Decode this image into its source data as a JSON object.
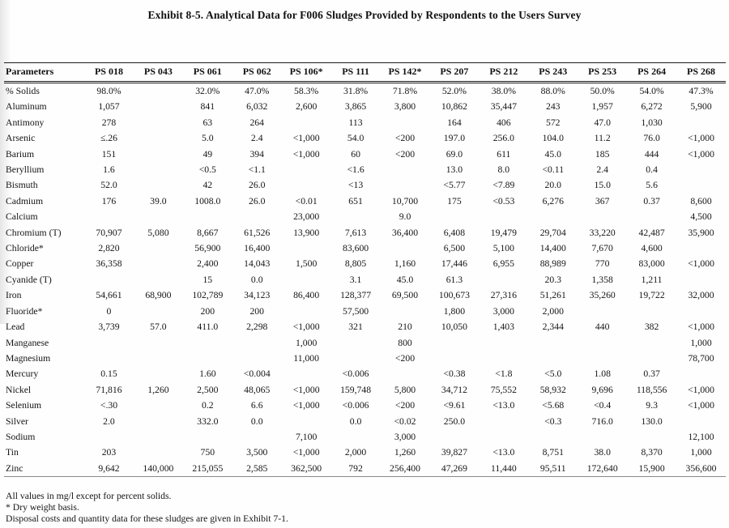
{
  "title": "Exhibit 8-5. Analytical Data for F006 Sludges Provided by Respondents to the Users Survey",
  "table": {
    "param_header": "Parameters",
    "columns": [
      "PS 018",
      "PS 043",
      "PS 061",
      "PS 062",
      "PS 106*",
      "PS 111",
      "PS 142*",
      "PS 207",
      "PS 212",
      "PS 243",
      "PS 253",
      "PS 264",
      "PS 268"
    ],
    "rows": [
      {
        "parameter": "% Solids",
        "values": [
          "98.0%",
          "",
          "32.0%",
          "47.0%",
          "58.3%",
          "31.8%",
          "71.8%",
          "52.0%",
          "38.0%",
          "88.0%",
          "50.0%",
          "54.0%",
          "47.3%"
        ]
      },
      {
        "parameter": "Aluminum",
        "values": [
          "1,057",
          "",
          "841",
          "6,032",
          "2,600",
          "3,865",
          "3,800",
          "10,862",
          "35,447",
          "243",
          "1,957",
          "6,272",
          "5,900"
        ]
      },
      {
        "parameter": "Antimony",
        "values": [
          "278",
          "",
          "63",
          "264",
          "",
          "113",
          "",
          "164",
          "406",
          "572",
          "47.0",
          "1,030",
          ""
        ]
      },
      {
        "parameter": "Arsenic",
        "values": [
          "≤.26",
          "",
          "5.0",
          "2.4",
          "<1,000",
          "54.0",
          "<200",
          "197.0",
          "256.0",
          "104.0",
          "11.2",
          "76.0",
          "<1,000"
        ]
      },
      {
        "parameter": "Barium",
        "values": [
          "151",
          "",
          "49",
          "394",
          "<1,000",
          "60",
          "<200",
          "69.0",
          "611",
          "45.0",
          "185",
          "444",
          "<1,000"
        ]
      },
      {
        "parameter": "Beryllium",
        "values": [
          "1.6",
          "",
          "<0.5",
          "<1.1",
          "",
          "<1.6",
          "",
          "13.0",
          "8.0",
          "<0.11",
          "2.4",
          "0.4",
          ""
        ]
      },
      {
        "parameter": "Bismuth",
        "values": [
          "52.0",
          "",
          "42",
          "26.0",
          "",
          "<13",
          "",
          "<5.77",
          "<7.89",
          "20.0",
          "15.0",
          "5.6",
          ""
        ]
      },
      {
        "parameter": "Cadmium",
        "values": [
          "176",
          "39.0",
          "1008.0",
          "26.0",
          "<0.01",
          "651",
          "10,700",
          "175",
          "<0.53",
          "6,276",
          "367",
          "0.37",
          "8,600"
        ]
      },
      {
        "parameter": "Calcium",
        "values": [
          "",
          "",
          "",
          "",
          "23,000",
          "",
          "9.0",
          "",
          "",
          "",
          "",
          "",
          "4,500"
        ]
      },
      {
        "parameter": "Chromium (T)",
        "values": [
          "70,907",
          "5,080",
          "8,667",
          "61,526",
          "13,900",
          "7,613",
          "36,400",
          "6,408",
          "19,479",
          "29,704",
          "33,220",
          "42,487",
          "35,900"
        ]
      },
      {
        "parameter": "Chloride*",
        "values": [
          "2,820",
          "",
          "56,900",
          "16,400",
          "",
          "83,600",
          "",
          "6,500",
          "5,100",
          "14,400",
          "7,670",
          "4,600",
          ""
        ]
      },
      {
        "parameter": "Copper",
        "values": [
          "36,358",
          "",
          "2,400",
          "14,043",
          "1,500",
          "8,805",
          "1,160",
          "17,446",
          "6,955",
          "88,989",
          "770",
          "83,000",
          "<1,000"
        ]
      },
      {
        "parameter": "Cyanide (T)",
        "values": [
          "",
          "",
          "15",
          "0.0",
          "",
          "3.1",
          "45.0",
          "61.3",
          "",
          "20.3",
          "1,358",
          "1,211",
          ""
        ]
      },
      {
        "parameter": "Iron",
        "values": [
          "54,661",
          "68,900",
          "102,789",
          "34,123",
          "86,400",
          "128,377",
          "69,500",
          "100,673",
          "27,316",
          "51,261",
          "35,260",
          "19,722",
          "32,000"
        ]
      },
      {
        "parameter": "Fluoride*",
        "values": [
          "0",
          "",
          "200",
          "200",
          "",
          "57,500",
          "",
          "1,800",
          "3,000",
          "2,000",
          "",
          "",
          ""
        ]
      },
      {
        "parameter": "Lead",
        "values": [
          "3,739",
          "57.0",
          "411.0",
          "2,298",
          "<1,000",
          "321",
          "210",
          "10,050",
          "1,403",
          "2,344",
          "440",
          "382",
          "<1,000"
        ]
      },
      {
        "parameter": "Manganese",
        "values": [
          "",
          "",
          "",
          "",
          "1,000",
          "",
          "800",
          "",
          "",
          "",
          "",
          "",
          "1,000"
        ]
      },
      {
        "parameter": "Magnesium",
        "values": [
          "",
          "",
          "",
          "",
          "11,000",
          "",
          "<200",
          "",
          "",
          "",
          "",
          "",
          "78,700"
        ]
      },
      {
        "parameter": "Mercury",
        "values": [
          "0.15",
          "",
          "1.60",
          "<0.004",
          "",
          "<0.006",
          "",
          "<0.38",
          "<1.8",
          "<5.0",
          "1.08",
          "0.37",
          ""
        ]
      },
      {
        "parameter": "Nickel",
        "values": [
          "71,816",
          "1,260",
          "2,500",
          "48,065",
          "<1,000",
          "159,748",
          "5,800",
          "34,712",
          "75,552",
          "58,932",
          "9,696",
          "118,556",
          "<1,000"
        ]
      },
      {
        "parameter": "Selenium",
        "values": [
          "<.30",
          "",
          "0.2",
          "6.6",
          "<1,000",
          "<0.006",
          "<200",
          "<9.61",
          "<13.0",
          "<5.68",
          "<0.4",
          "9.3",
          "<1,000"
        ]
      },
      {
        "parameter": "Silver",
        "values": [
          "2.0",
          "",
          "332.0",
          "0.0",
          "",
          "0.0",
          "<0.02",
          "250.0",
          "",
          "<0.3",
          "716.0",
          "130.0",
          ""
        ]
      },
      {
        "parameter": "Sodium",
        "values": [
          "",
          "",
          "",
          "",
          "7,100",
          "",
          "3,000",
          "",
          "",
          "",
          "",
          "",
          "12,100"
        ]
      },
      {
        "parameter": "Tin",
        "values": [
          "203",
          "",
          "750",
          "3,500",
          "<1,000",
          "2,000",
          "1,260",
          "39,827",
          "<13.0",
          "8,751",
          "38.0",
          "8,370",
          "1,000"
        ]
      },
      {
        "parameter": "Zinc",
        "values": [
          "9,642",
          "140,000",
          "215,055",
          "2,585",
          "362,500",
          "792",
          "256,400",
          "47,269",
          "11,440",
          "95,511",
          "172,640",
          "15,900",
          "356,600"
        ]
      }
    ]
  },
  "footnotes": [
    "All values in mg/l except for percent solids.",
    "* Dry weight basis.",
    "Disposal costs and quantity data for these sludges are given in Exhibit 7-1."
  ]
}
